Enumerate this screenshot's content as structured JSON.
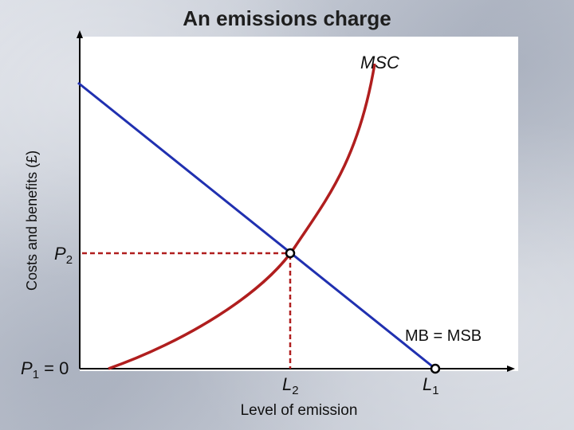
{
  "title": "An emissions charge",
  "y_axis_label": "Costs and benefits (£)",
  "x_axis_label": "Level of emission",
  "curves": {
    "msc_label": "MSC",
    "mb_label": "MB = MSB"
  },
  "price_labels": {
    "p2_main": "P",
    "p2_sub": "2",
    "p1_main": "P",
    "p1_sub": "1",
    "p1_suffix": " = 0"
  },
  "quantity_labels": {
    "l2_main": "L",
    "l2_sub": "2",
    "l1_main": "L",
    "l1_sub": "1"
  },
  "colors": {
    "msc": "#b01e1e",
    "mb": "#2030b0",
    "dashed": "#b01e1e",
    "axis": "#000000"
  }
}
